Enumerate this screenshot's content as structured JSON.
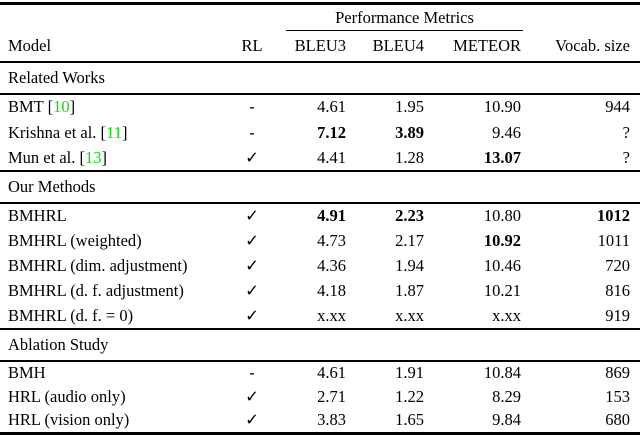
{
  "table": {
    "span_header": "Performance Metrics",
    "columns": [
      "Model",
      "RL",
      "BLEU3",
      "BLEU4",
      "METEOR",
      "Vocab. size"
    ],
    "rl_check_glyph": "✓",
    "rl_dash_glyph": "-",
    "citation_color": "#00e600",
    "text_color": "#000000",
    "sections": [
      {
        "title": "Related Works",
        "rows": [
          {
            "model": "BMT",
            "cite": "10",
            "rl": "dash",
            "bleu3": "4.61",
            "bleu4": "1.95",
            "meteor": "10.90",
            "vocab": "944",
            "bold": []
          },
          {
            "model": "Krishna et al.",
            "cite": "11",
            "rl": "dash",
            "bleu3": "7.12",
            "bleu4": "3.89",
            "meteor": "9.46",
            "vocab": "?",
            "bold": [
              "bleu3",
              "bleu4"
            ]
          },
          {
            "model": "Mun et al.",
            "cite": "13",
            "rl": "check",
            "bleu3": "4.41",
            "bleu4": "1.28",
            "meteor": "13.07",
            "vocab": "?",
            "bold": [
              "meteor"
            ]
          }
        ]
      },
      {
        "title": "Our Methods",
        "rows": [
          {
            "model": "BMHRL",
            "cite": null,
            "rl": "check",
            "bleu3": "4.91",
            "bleu4": "2.23",
            "meteor": "10.80",
            "vocab": "1012",
            "bold": [
              "bleu3",
              "bleu4",
              "vocab"
            ]
          },
          {
            "model": "BMHRL (weighted)",
            "cite": null,
            "rl": "check",
            "bleu3": "4.73",
            "bleu4": "2.17",
            "meteor": "10.92",
            "vocab": "1011",
            "bold": [
              "meteor"
            ]
          },
          {
            "model": "BMHRL (dim. adjustment)",
            "cite": null,
            "rl": "check",
            "bleu3": "4.36",
            "bleu4": "1.94",
            "meteor": "10.46",
            "vocab": "720",
            "bold": []
          },
          {
            "model": "BMHRL (d. f. adjustment)",
            "cite": null,
            "rl": "check",
            "bleu3": "4.18",
            "bleu4": "1.87",
            "meteor": "10.21",
            "vocab": "816",
            "bold": []
          },
          {
            "model": "BMHRL (d. f. = 0)",
            "cite": null,
            "rl": "check",
            "bleu3": "x.xx",
            "bleu4": "x.xx",
            "meteor": "x.xx",
            "vocab": "919",
            "bold": []
          }
        ]
      },
      {
        "title": "Ablation Study",
        "rows": [
          {
            "model": "BMH",
            "cite": null,
            "rl": "dash",
            "bleu3": "4.61",
            "bleu4": "1.91",
            "meteor": "10.84",
            "vocab": "869",
            "bold": []
          },
          {
            "model": "HRL (audio only)",
            "cite": null,
            "rl": "check",
            "bleu3": "2.71",
            "bleu4": "1.22",
            "meteor": "8.29",
            "vocab": "153",
            "bold": []
          },
          {
            "model": "HRL (vision only)",
            "cite": null,
            "rl": "check",
            "bleu3": "3.83",
            "bleu4": "1.65",
            "meteor": "9.84",
            "vocab": "680",
            "bold": []
          }
        ]
      }
    ]
  }
}
